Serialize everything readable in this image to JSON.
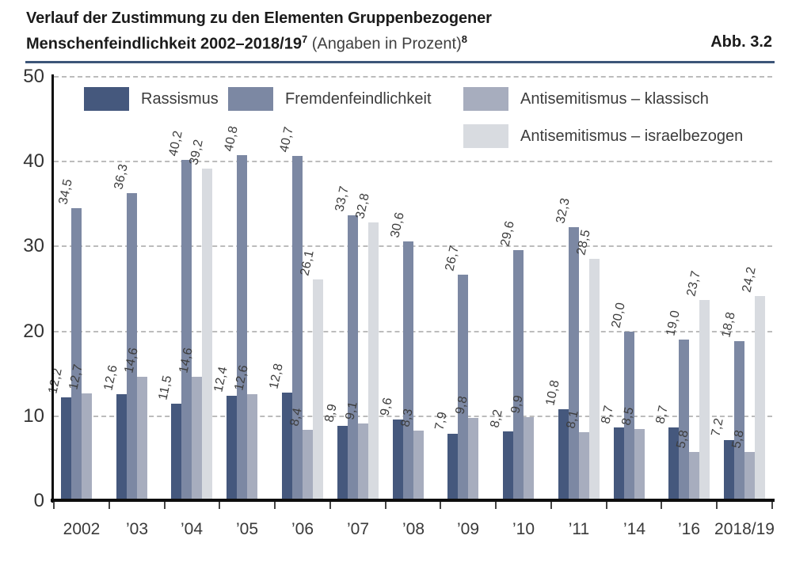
{
  "header": {
    "title_line1": "Verlauf der Zustimmung zu den Elementen Gruppenbezogener",
    "title_line2_bold": "Menschenfeindlichkeit 2002–2018/19",
    "title_sup_a": "7",
    "title_line2_normal": " (Angaben in Prozent)",
    "title_sup_b": "8",
    "figure_label": "Abb. 3.2"
  },
  "colors": {
    "accent_rule": "#3C5578",
    "axis": "#0e0e0e",
    "grid": "#bcbcbc",
    "title_text": "#1b1b1b",
    "label_text": "#3d3d3d"
  },
  "chart_data": {
    "type": "bar",
    "title": "Verlauf der Zustimmung zu den Elementen Gruppenbezogener Menschenfeindlichkeit 2002–2018/19 (Angaben in Prozent)",
    "categories": [
      "2002",
      "’03",
      "’04",
      "’05",
      "’06",
      "’07",
      "’08",
      "’09",
      "’10",
      "’11",
      "’14",
      "’16",
      "2018/19"
    ],
    "series": [
      {
        "name": "Rassismus",
        "color": "#45587D",
        "values": [
          12.2,
          12.6,
          11.5,
          12.4,
          12.8,
          8.9,
          9.6,
          7.9,
          8.2,
          10.8,
          8.7,
          8.7,
          7.2
        ],
        "labels": [
          "12,2",
          "12,6",
          "11,5",
          "12,4",
          "12,8",
          "8,9",
          "9,6",
          "7,9",
          "8,2",
          "10,8",
          "8,7",
          "8,7",
          "7,2"
        ]
      },
      {
        "name": "Fremdenfeindlichkeit",
        "color": "#7C88A3",
        "values": [
          34.5,
          36.3,
          40.2,
          40.8,
          40.7,
          33.7,
          30.6,
          26.7,
          29.6,
          32.3,
          20.0,
          19.0,
          18.8
        ],
        "labels": [
          "34,5",
          "36,3",
          "40,2",
          "40,8",
          "40,7",
          "33,7",
          "30,6",
          "26,7",
          "29,6",
          "32,3",
          "20,0",
          "19,0",
          "18,8"
        ]
      },
      {
        "name": "Antisemitismus – klassisch",
        "color": "#A7ADBE",
        "values": [
          12.7,
          14.6,
          14.6,
          12.6,
          8.4,
          9.1,
          8.3,
          9.8,
          9.9,
          8.1,
          8.5,
          5.8,
          5.8
        ],
        "labels": [
          "12,7",
          "14,6",
          "14,6",
          "12,6",
          "8,4",
          "9,1",
          "8,3",
          "9,8",
          "9,9",
          "8,1",
          "8,5",
          "5,8",
          "5,8"
        ]
      },
      {
        "name": "Antisemitismus – israelbezogen",
        "color": "#D8DBE0",
        "values": [
          null,
          null,
          39.2,
          null,
          26.1,
          32.8,
          null,
          null,
          null,
          28.5,
          null,
          23.7,
          24.2
        ],
        "labels": [
          null,
          null,
          "39,2",
          null,
          "26,1",
          "32,8",
          null,
          null,
          null,
          "28,5",
          null,
          "23,7",
          "24,2"
        ]
      }
    ],
    "ylim": [
      0,
      50
    ],
    "yticks": [
      0,
      10,
      20,
      30,
      40,
      50
    ],
    "xlabel": "",
    "ylabel": "",
    "grid": "horizontal-dashed",
    "legend_position": "top-inside",
    "value_labels": "rotated above bars, decimal comma"
  }
}
